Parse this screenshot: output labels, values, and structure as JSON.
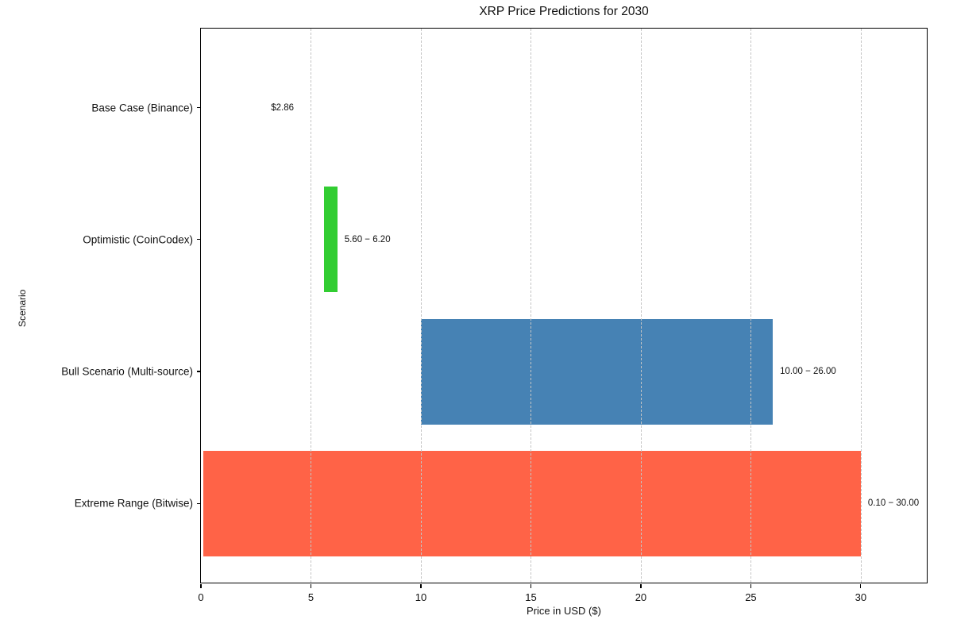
{
  "chart_data": {
    "type": "bar",
    "orientation": "horizontal",
    "title": "XRP Price Predictions for 2030",
    "xlabel": "Price in USD ($)",
    "ylabel": "Scenario",
    "xlim": [
      0,
      33
    ],
    "ylim": [
      -0.6,
      3.6
    ],
    "xticks": [
      0,
      5,
      10,
      15,
      20,
      25,
      30
    ],
    "grid": true,
    "grid_style": "dashed",
    "legend": "none",
    "bar_thickness": 0.8,
    "categories": [
      "Base Case (Binance)",
      "Optimistic (CoinCodex)",
      "Bull Scenario (Multi-source)",
      "Extreme Range (Bitwise)"
    ],
    "series": [
      {
        "name": "Base Case (Binance)",
        "low": 2.86,
        "high": 2.86,
        "color": null,
        "annotation": "$2.86"
      },
      {
        "name": "Optimistic (CoinCodex)",
        "low": 5.6,
        "high": 6.2,
        "color": "#32CD32",
        "annotation": "5.60 − 6.20"
      },
      {
        "name": "Bull Scenario (Multi-source)",
        "low": 10.0,
        "high": 26.0,
        "color": "#4682B4",
        "annotation": "10.00 − 26.00"
      },
      {
        "name": "Extreme Range (Bitwise)",
        "low": 0.1,
        "high": 30.0,
        "color": "#FF6347",
        "annotation": "0.10 − 30.00"
      }
    ],
    "colors": {
      "grid": "#c4c4c4",
      "spine": "#000000",
      "text": "#111111",
      "background": "#ffffff"
    }
  }
}
